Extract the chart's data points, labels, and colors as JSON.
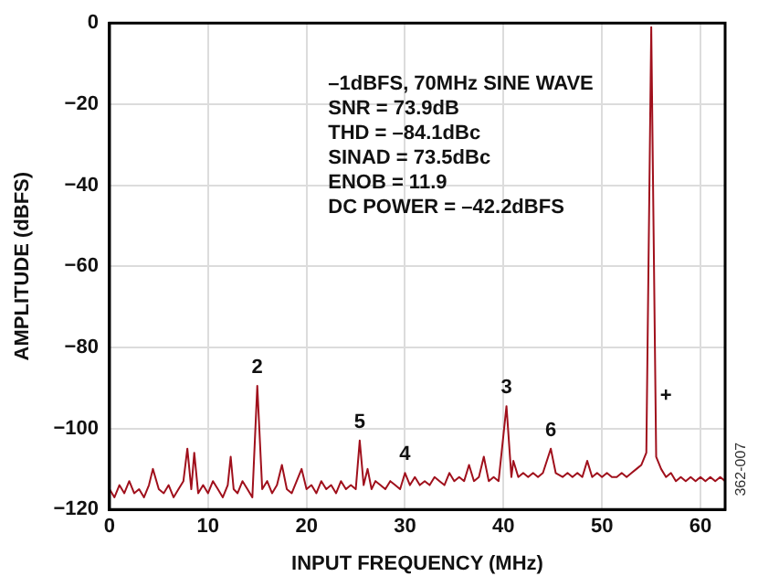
{
  "chart_data": {
    "type": "line",
    "xlabel": "INPUT FREQUENCY (MHz)",
    "ylabel": "AMPLITUDE (dBFS)",
    "xlim": [
      0,
      62.5
    ],
    "xticks": [
      0,
      10,
      20,
      30,
      40,
      50,
      60
    ],
    "ylim": [
      -120,
      0
    ],
    "yticks": [
      0,
      -20,
      -40,
      -60,
      -80,
      -100,
      -120
    ],
    "grid": true,
    "legend": false,
    "marker": "none",
    "series": [
      {
        "color": "#a0101c",
        "x": [
          0,
          0.5,
          1,
          1.5,
          2,
          2.5,
          3,
          3.5,
          4,
          4.4,
          5,
          5.5,
          6,
          6.5,
          7,
          7.5,
          7.9,
          8.3,
          8.6,
          9,
          9.5,
          10,
          10.5,
          11,
          11.5,
          12,
          12.3,
          12.6,
          13,
          13.5,
          14,
          14.5,
          15,
          15.5,
          16,
          16.5,
          17,
          17.5,
          18,
          18.5,
          19,
          19.5,
          20,
          20.5,
          21,
          21.5,
          22,
          22.5,
          23,
          23.5,
          24,
          24.5,
          25,
          25.4,
          25.8,
          26.2,
          26.6,
          27,
          27.5,
          28,
          28.5,
          29,
          29.5,
          30,
          30.5,
          31,
          31.5,
          32,
          32.5,
          33,
          33.5,
          34,
          34.5,
          35,
          35.5,
          36,
          36.5,
          37,
          37.5,
          38,
          38.5,
          39,
          39.5,
          40.3,
          40.8,
          41,
          41.5,
          42,
          42.5,
          43,
          43.5,
          44,
          44.8,
          45.3,
          46,
          46.5,
          47,
          47.5,
          48,
          48.5,
          49,
          49.5,
          50,
          50.5,
          51,
          51.5,
          52,
          52.5,
          53,
          53.5,
          54,
          54.5,
          55,
          55.5,
          56,
          56.5,
          57,
          57.5,
          58,
          58.5,
          59,
          59.5,
          60,
          60.5,
          61,
          61.5,
          62,
          62.5
        ],
        "values": [
          -115,
          -117,
          -114,
          -116,
          -113,
          -116,
          -115,
          -117,
          -114,
          -110,
          -115,
          -116,
          -114,
          -117,
          -115,
          -113,
          -105,
          -115,
          -106,
          -116,
          -114,
          -116,
          -113,
          -115,
          -117,
          -114,
          -107,
          -115,
          -116,
          -113,
          -115,
          -117,
          -89.5,
          -115,
          -113,
          -116,
          -114,
          -109,
          -115,
          -116,
          -113,
          -110,
          -115,
          -114,
          -116,
          -113,
          -115,
          -114,
          -116,
          -113,
          -115,
          -114,
          -115,
          -103,
          -114,
          -110,
          -115,
          -113,
          -114,
          -115,
          -113,
          -114,
          -115,
          -111,
          -114,
          -112,
          -114,
          -113,
          -114,
          -112,
          -113,
          -114,
          -111,
          -113,
          -112,
          -113,
          -109,
          -113,
          -112,
          -107,
          -113,
          -112,
          -113,
          -94.5,
          -112,
          -108,
          -112,
          -111,
          -112,
          -111,
          -112,
          -111,
          -105,
          -111,
          -112,
          -111,
          -112,
          -111,
          -112,
          -108,
          -112,
          -111,
          -112,
          -111,
          -112,
          -112,
          -111,
          -112,
          -111,
          -110,
          -109,
          -106,
          -1,
          -107,
          -110,
          -112,
          -111,
          -113,
          -112,
          -113,
          -112,
          -113,
          -112,
          -113,
          -112,
          -113,
          -112,
          -113
        ]
      }
    ],
    "annotations": [
      "–1dBFS, 70MHz SINE WAVE",
      "SNR = 73.9dB",
      "THD = –84.1dBc",
      "SINAD = 73.5dBc",
      "ENOB = 11.9",
      "DC POWER = –42.2dBFS",
      {
        "text": "2",
        "x": 15,
        "y": -89.5
      },
      {
        "text": "5",
        "x": 25.4,
        "y": -103
      },
      {
        "text": "4",
        "x": 30,
        "y": -111
      },
      {
        "text": "3",
        "x": 40.3,
        "y": -94.5
      },
      {
        "text": "6",
        "x": 44.8,
        "y": -105
      },
      {
        "text": "+",
        "x": 55,
        "y": -92
      },
      "362-007"
    ]
  }
}
